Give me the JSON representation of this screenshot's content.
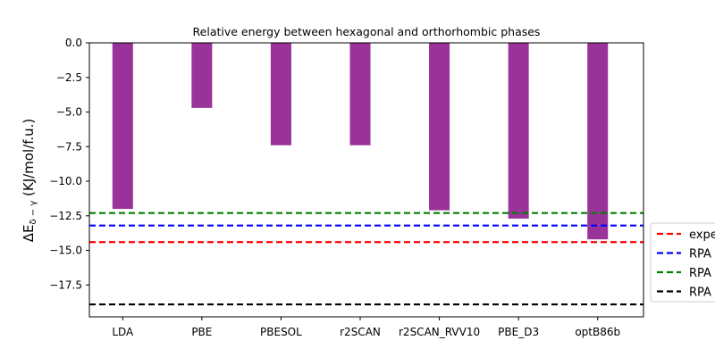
{
  "chart_data": {
    "type": "bar",
    "title": "Relative energy between hexagonal and orthorhombic phases",
    "ylabel_main": "ΔE",
    "ylabel_sub": "δ − γ",
    "ylabel_rest": " (KJ/mol/f.u.)",
    "xlabel": "",
    "categories": [
      "LDA",
      "PBE",
      "PBESOL",
      "r2SCAN",
      "r2SCAN_RVV10",
      "PBE_D3",
      "optB86b"
    ],
    "values": [
      -12.0,
      -4.7,
      -7.4,
      -7.4,
      -12.1,
      -12.7,
      -14.2
    ],
    "bar_color": "#993399",
    "ylim": [
      -19.8,
      0.0
    ],
    "yticks": [
      0.0,
      -2.5,
      -5.0,
      -7.5,
      -10.0,
      -12.5,
      -15.0,
      -17.5
    ],
    "ytick_labels": [
      "0.0",
      "−2.5",
      "−5.0",
      "−7.5",
      "−10.0",
      "−12.5",
      "−15.0",
      "−17.5"
    ],
    "reference_lines": [
      {
        "label": "expe",
        "value": -14.4,
        "color": "#ff0000"
      },
      {
        "label": "RPA",
        "value": -13.2,
        "color": "#0000ff"
      },
      {
        "label": "RPA",
        "value": -12.3,
        "color": "#008000"
      },
      {
        "label": "RPA",
        "value": -18.9,
        "color": "#000000"
      }
    ],
    "legend_placement": "right-outside",
    "grid": false
  }
}
